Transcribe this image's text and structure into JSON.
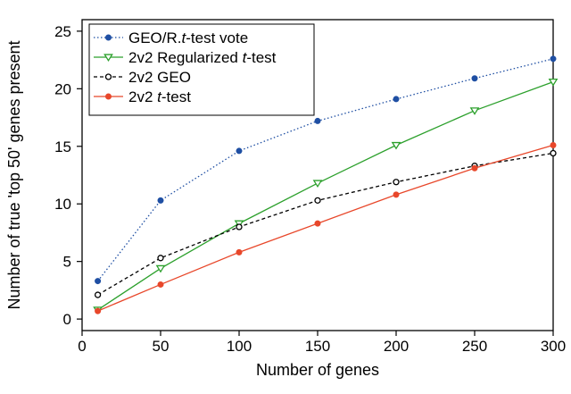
{
  "chart_data": {
    "type": "line",
    "xlabel": "Number of genes",
    "ylabel": "Number of true 'top 50' genes present",
    "xlim": [
      0,
      300
    ],
    "ylim": [
      -1,
      26
    ],
    "x_ticks": [
      0,
      50,
      100,
      150,
      200,
      250,
      300
    ],
    "y_ticks": [
      0,
      5,
      10,
      15,
      20,
      25
    ],
    "grid": false,
    "legend_position": "top-left",
    "x": [
      10,
      50,
      100,
      150,
      200,
      250,
      300
    ],
    "series": [
      {
        "name": "GEO/R.t-test vote",
        "name_prefix": "GEO/R.",
        "name_italic": "t",
        "name_suffix": "-test vote",
        "values": [
          3.3,
          10.3,
          14.6,
          17.2,
          19.1,
          20.9,
          22.6
        ],
        "color": "#1f4fa3",
        "line_style": "dotted",
        "marker": "filled-circle"
      },
      {
        "name": "2v2 Regularized t-test",
        "name_prefix": "2v2 Regularized ",
        "name_italic": "t",
        "name_suffix": "-test",
        "values": [
          0.8,
          4.4,
          8.3,
          11.8,
          15.1,
          18.1,
          20.6
        ],
        "color": "#2ca02c",
        "line_style": "solid",
        "marker": "open-triangle-down"
      },
      {
        "name": "2v2 GEO",
        "name_prefix": "2v2 GEO",
        "name_italic": "",
        "name_suffix": "",
        "values": [
          2.1,
          5.3,
          8.0,
          10.3,
          11.9,
          13.3,
          14.4
        ],
        "color": "#000000",
        "line_style": "dashed",
        "marker": "open-circle"
      },
      {
        "name": "2v2 t-test",
        "name_prefix": "2v2 ",
        "name_italic": "t",
        "name_suffix": "-test",
        "values": [
          0.7,
          3.0,
          5.8,
          8.3,
          10.8,
          13.1,
          15.1
        ],
        "color": "#e8472a",
        "line_style": "solid",
        "marker": "filled-circle"
      }
    ]
  }
}
